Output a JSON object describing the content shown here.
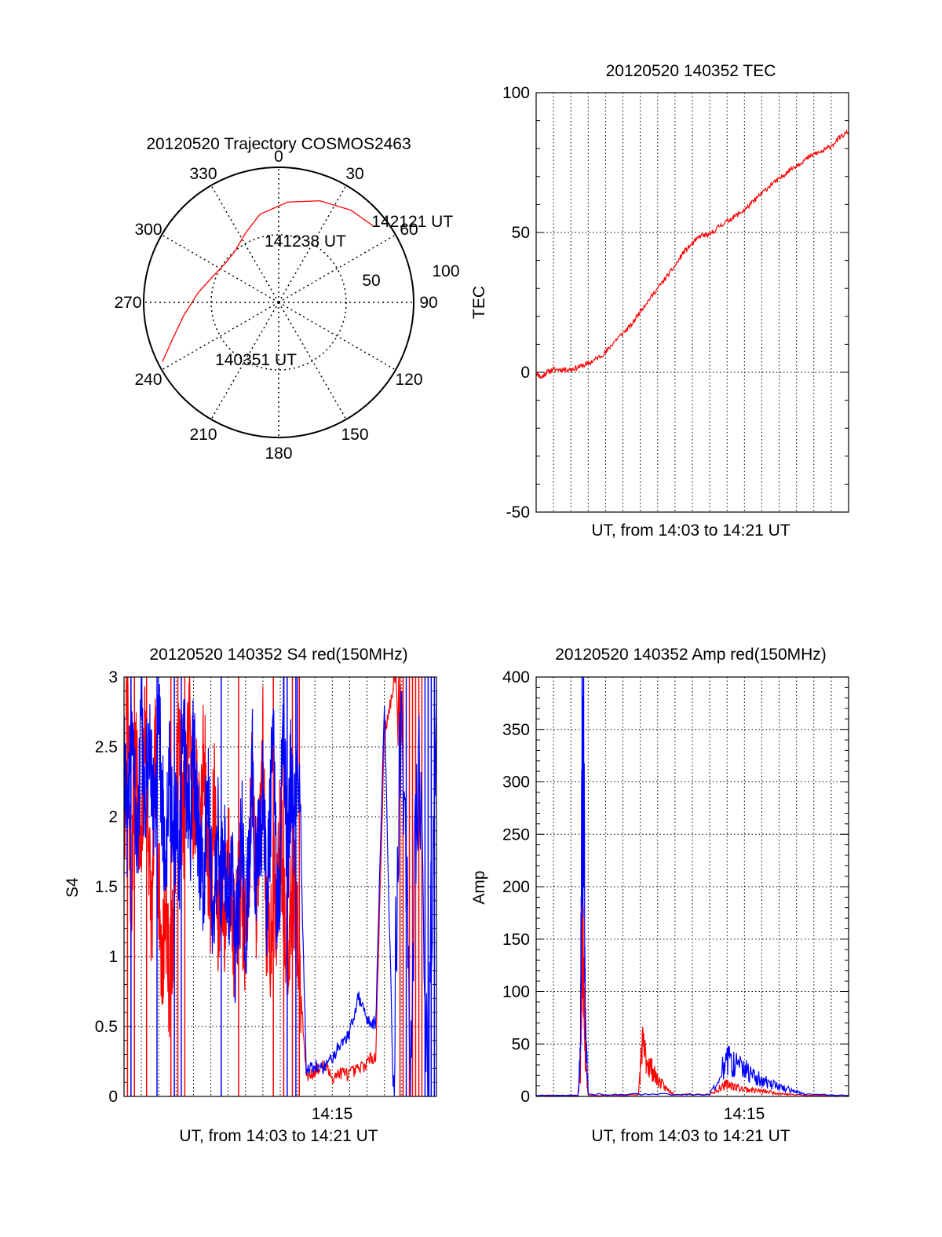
{
  "colors": {
    "red": "#ff0000",
    "blue": "#0000ff",
    "axis": "#000000",
    "grid": "#000000"
  },
  "chart_data": [
    {
      "type": "polar",
      "title": "20120520 Trajectory COSMOS2463",
      "azimuth_labels": [
        "0",
        "30",
        "60",
        "90",
        "120",
        "150",
        "180",
        "210",
        "240",
        "270",
        "300",
        "330"
      ],
      "radial_labels": [
        "50",
        "100"
      ],
      "grid": true,
      "trajectory": {
        "color": "red",
        "points": [
          {
            "az": 243,
            "el": 3
          },
          {
            "az": 250,
            "el": 14
          },
          {
            "az": 262,
            "el": 26
          },
          {
            "az": 277,
            "el": 36
          },
          {
            "az": 292,
            "el": 43
          },
          {
            "az": 307,
            "el": 46
          },
          {
            "az": 320,
            "el": 45
          },
          {
            "az": 334,
            "el": 39
          },
          {
            "az": 348,
            "el": 30
          },
          {
            "az": 5,
            "el": 23
          },
          {
            "az": 22,
            "el": 17
          },
          {
            "az": 38,
            "el": 12
          },
          {
            "az": 51,
            "el": 9
          }
        ]
      },
      "annotations": [
        {
          "text": "142121 UT",
          "az": 49,
          "el": 8
        },
        {
          "text": "141238 UT",
          "az": 347,
          "el": 48
        },
        {
          "text": "140351 UT",
          "az": 228,
          "el": 33
        }
      ]
    },
    {
      "type": "line",
      "title": "20120520 140352 TEC",
      "xlabel": "UT, from 14:03 to 14:21 UT",
      "ylabel": "TEC",
      "ylim": [
        -50,
        100
      ],
      "yticks": [
        -50,
        0,
        50,
        100
      ],
      "xlim": [
        0,
        18
      ],
      "grid": true,
      "series": [
        {
          "color": "red",
          "x": [
            0.0,
            0.3,
            0.6,
            1.0,
            1.5,
            2.0,
            2.5,
            3.0,
            3.5,
            4.0,
            4.5,
            5.0,
            5.5,
            6.0,
            6.5,
            7.0,
            7.5,
            8.0,
            8.5,
            9.0,
            9.5,
            10.0,
            10.5,
            11.0,
            11.5,
            12.0,
            12.5,
            13.0,
            13.5,
            14.0,
            14.5,
            15.0,
            15.5,
            16.0,
            16.5,
            17.0,
            17.5,
            18.0
          ],
          "y": [
            0,
            -2,
            0,
            1,
            1,
            1,
            2,
            3,
            5,
            7,
            11,
            14,
            17,
            22,
            26,
            30,
            34,
            38,
            43,
            46,
            49,
            49,
            52,
            54,
            56,
            58,
            61,
            64,
            67,
            69,
            72,
            74,
            76,
            78,
            79,
            81,
            84,
            86
          ]
        }
      ]
    },
    {
      "type": "line",
      "title": "20120520 140352 S4 red(150MHz)",
      "xlabel": "UT, from 14:03 to 14:21 UT",
      "ylabel": "S4",
      "xtick_labels": [
        {
          "x": 12,
          "label": "14:15"
        }
      ],
      "ylim": [
        0,
        3
      ],
      "yticks": [
        0,
        0.5,
        1,
        1.5,
        2,
        2.5,
        3
      ],
      "xlim": [
        0,
        18
      ],
      "grid": true,
      "series": [
        {
          "color": "red",
          "x": [
            0.0,
            0.2,
            0.4,
            0.6,
            0.8,
            1.0,
            1.2,
            1.4,
            1.6,
            1.8,
            2.0,
            2.2,
            2.4,
            2.6,
            2.8,
            3.0,
            3.2,
            3.4,
            3.6,
            3.8,
            4.0,
            4.2,
            4.4,
            4.6,
            4.8,
            5.0,
            5.2,
            5.4,
            5.6,
            5.8,
            6.0,
            6.2,
            6.4,
            6.6,
            6.8,
            7.0,
            7.2,
            7.4,
            7.6,
            7.8,
            8.0,
            8.2,
            8.4,
            8.6,
            8.8,
            9.0,
            9.2,
            9.4,
            9.6,
            9.8,
            10.0,
            10.5,
            11.0,
            11.5,
            12.0,
            12.5,
            13.0,
            13.5,
            14.0,
            14.5,
            15.0,
            15.5,
            16.0
          ],
          "y": [
            1.8,
            2.9,
            1.3,
            2.4,
            2.2,
            1.6,
            2.7,
            1.9,
            1.2,
            2.5,
            1.5,
            0.9,
            1.4,
            0.8,
            1.1,
            2.1,
            2.6,
            1.9,
            2.4,
            2.8,
            2.0,
            2.3,
            1.7,
            2.6,
            1.8,
            1.4,
            2.2,
            1.1,
            1.6,
            1.2,
            1.9,
            1.4,
            1.0,
            1.5,
            1.3,
            1.1,
            1.7,
            2.3,
            1.4,
            1.9,
            2.5,
            1.3,
            1.0,
            1.6,
            1.2,
            2.0,
            1.4,
            1.1,
            1.3,
            1.5,
            1.1,
            0.15,
            0.18,
            0.22,
            0.14,
            0.17,
            0.16,
            0.19,
            0.24,
            0.3,
            2.6,
            2.9,
            2.7
          ]
        },
        {
          "color": "blue",
          "x": [
            0.0,
            0.2,
            0.4,
            0.6,
            0.8,
            1.0,
            1.2,
            1.4,
            1.6,
            1.8,
            2.0,
            2.2,
            2.4,
            2.6,
            2.8,
            3.0,
            3.2,
            3.4,
            3.6,
            3.8,
            4.0,
            4.2,
            4.4,
            4.6,
            4.8,
            5.0,
            5.2,
            5.4,
            5.6,
            5.8,
            6.0,
            6.2,
            6.4,
            6.6,
            6.8,
            7.0,
            7.2,
            7.4,
            7.6,
            7.8,
            8.0,
            8.2,
            8.4,
            8.6,
            8.8,
            9.0,
            9.2,
            9.4,
            9.6,
            9.8,
            10.0,
            10.5,
            11.0,
            11.5,
            12.0,
            12.5,
            13.0,
            13.5,
            14.0,
            14.5,
            15.0,
            15.5,
            16.0,
            16.5,
            17.0,
            17.5,
            18.0
          ],
          "y": [
            2.6,
            1.7,
            2.9,
            2.2,
            1.8,
            2.8,
            2.0,
            2.5,
            2.3,
            1.9,
            2.7,
            2.1,
            1.6,
            2.4,
            1.8,
            2.0,
            1.7,
            2.6,
            2.2,
            1.9,
            2.5,
            2.1,
            1.7,
            1.4,
            2.3,
            1.6,
            1.2,
            2.0,
            1.5,
            1.8,
            1.3,
            1.6,
            1.1,
            1.4,
            1.9,
            1.2,
            1.6,
            2.4,
            1.5,
            1.8,
            2.2,
            1.4,
            1.9,
            2.6,
            1.3,
            1.7,
            2.9,
            1.5,
            2.3,
            1.8,
            2.7,
            0.18,
            0.22,
            0.2,
            0.28,
            0.38,
            0.46,
            0.72,
            0.55,
            0.52,
            2.8,
            0.1,
            2.9,
            0.2,
            2.7,
            0.1,
            2.9
          ]
        }
      ]
    },
    {
      "type": "line",
      "title": "20120520 140352 Amp red(150MHz)",
      "xlabel": "UT, from 14:03 to 14:21 UT",
      "ylabel": "Amp",
      "xtick_labels": [
        {
          "x": 12,
          "label": "14:15"
        }
      ],
      "ylim": [
        0,
        400
      ],
      "yticks": [
        0,
        50,
        100,
        150,
        200,
        250,
        300,
        350,
        400
      ],
      "xlim": [
        0,
        18
      ],
      "grid": true,
      "series": [
        {
          "color": "red",
          "x": [
            0.0,
            2.4,
            2.55,
            2.65,
            2.75,
            2.85,
            3.0,
            5.0,
            5.9,
            6.1,
            6.3,
            6.6,
            6.9,
            7.2,
            7.6,
            8.0,
            10.0,
            10.8,
            11.1,
            11.5,
            12.0,
            12.5,
            13.0,
            13.5,
            14.0,
            14.5,
            15.5,
            18.0
          ],
          "y": [
            1,
            1,
            20,
            150,
            120,
            30,
            1,
            1,
            2,
            50,
            38,
            28,
            18,
            12,
            6,
            2,
            2,
            10,
            12,
            9,
            7,
            6,
            5,
            4,
            3,
            2,
            1,
            1
          ]
        },
        {
          "color": "blue",
          "x": [
            0.0,
            2.4,
            2.55,
            2.65,
            2.75,
            2.85,
            3.0,
            5.0,
            8.0,
            10.0,
            10.8,
            11.1,
            11.5,
            12.0,
            12.5,
            13.0,
            13.5,
            14.0,
            14.5,
            15.0,
            15.5,
            18.0
          ],
          "y": [
            1,
            1,
            40,
            330,
            280,
            60,
            2,
            2,
            2,
            2,
            28,
            34,
            30,
            25,
            20,
            15,
            12,
            9,
            7,
            4,
            2,
            1
          ]
        }
      ]
    }
  ]
}
